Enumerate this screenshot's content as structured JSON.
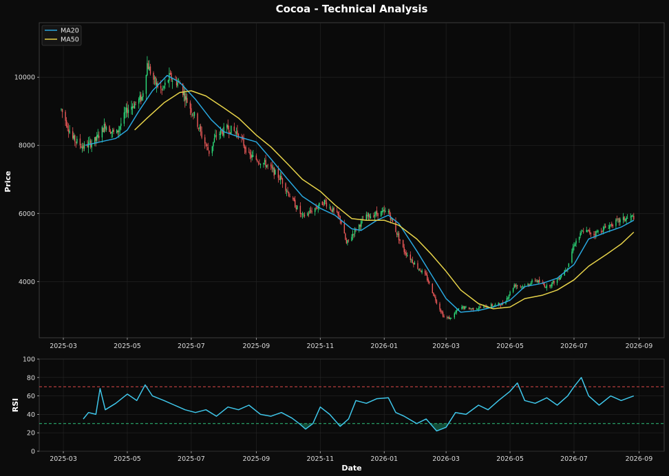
{
  "chart_data": [
    {
      "type": "candlestick",
      "title": "Cocoa - Technical Analysis",
      "ylabel": "Price",
      "xlabel": "",
      "ylim": [
        2350,
        11600
      ],
      "xlim": [
        "2025-02-06",
        "2026-09-25"
      ],
      "grid": true,
      "legend_position": "top-left",
      "x_ticks": [
        "2025-03",
        "2025-05",
        "2025-07",
        "2025-09",
        "2025-11",
        "2026-01",
        "2026-03",
        "2026-05",
        "2026-07",
        "2026-09"
      ],
      "y_ticks": [
        4000,
        6000,
        8000,
        10000
      ],
      "price_path": [
        [
          "2025-02-27",
          9050
        ],
        [
          "2025-03-10",
          8200
        ],
        [
          "2025-03-20",
          7950
        ],
        [
          "2025-04-01",
          8150
        ],
        [
          "2025-04-10",
          8600
        ],
        [
          "2025-04-20",
          8300
        ],
        [
          "2025-05-01",
          9050
        ],
        [
          "2025-05-15",
          9400
        ],
        [
          "2025-05-20",
          10400
        ],
        [
          "2025-05-27",
          9850
        ],
        [
          "2025-06-03",
          9600
        ],
        [
          "2025-06-10",
          10000
        ],
        [
          "2025-06-20",
          9800
        ],
        [
          "2025-06-27",
          9300
        ],
        [
          "2025-07-05",
          8800
        ],
        [
          "2025-07-12",
          8200
        ],
        [
          "2025-07-18",
          7800
        ],
        [
          "2025-07-25",
          8300
        ],
        [
          "2025-08-05",
          8500
        ],
        [
          "2025-08-15",
          8350
        ],
        [
          "2025-08-25",
          7700
        ],
        [
          "2025-09-10",
          7450
        ],
        [
          "2025-09-25",
          7000
        ],
        [
          "2025-10-05",
          6400
        ],
        [
          "2025-10-15",
          5900
        ],
        [
          "2025-10-25",
          6100
        ],
        [
          "2025-11-05",
          6350
        ],
        [
          "2025-11-20",
          5850
        ],
        [
          "2025-11-26",
          5100
        ],
        [
          "2025-12-05",
          5550
        ],
        [
          "2025-12-15",
          5900
        ],
        [
          "2025-12-25",
          6000
        ],
        [
          "2026-01-05",
          6050
        ],
        [
          "2026-01-12",
          5500
        ],
        [
          "2026-01-20",
          4900
        ],
        [
          "2026-02-01",
          4450
        ],
        [
          "2026-02-10",
          4150
        ],
        [
          "2026-02-20",
          3400
        ],
        [
          "2026-02-27",
          2950
        ],
        [
          "2026-03-05",
          2920
        ],
        [
          "2026-03-15",
          3250
        ],
        [
          "2026-03-25",
          3200
        ],
        [
          "2026-04-05",
          3250
        ],
        [
          "2026-04-15",
          3300
        ],
        [
          "2026-04-25",
          3350
        ],
        [
          "2026-05-05",
          3900
        ],
        [
          "2026-05-15",
          3850
        ],
        [
          "2026-05-25",
          4050
        ],
        [
          "2026-06-05",
          3850
        ],
        [
          "2026-06-15",
          4050
        ],
        [
          "2026-06-25",
          4450
        ],
        [
          "2026-07-01",
          5100
        ],
        [
          "2026-07-10",
          5500
        ],
        [
          "2026-07-20",
          5400
        ],
        [
          "2026-08-01",
          5600
        ],
        [
          "2026-08-10",
          5750
        ],
        [
          "2026-08-20",
          5850
        ],
        [
          "2026-08-27",
          5900
        ]
      ],
      "series": [
        {
          "name": "MA20",
          "color": "#29a8e0",
          "points": [
            [
              "2025-03-22",
              8000
            ],
            [
              "2025-04-05",
              8100
            ],
            [
              "2025-04-20",
              8200
            ],
            [
              "2025-05-01",
              8450
            ],
            [
              "2025-05-12",
              9000
            ],
            [
              "2025-05-25",
              9600
            ],
            [
              "2025-06-08",
              10050
            ],
            [
              "2025-06-20",
              9850
            ],
            [
              "2025-07-05",
              9350
            ],
            [
              "2025-07-20",
              8750
            ],
            [
              "2025-08-01",
              8400
            ],
            [
              "2025-08-15",
              8250
            ],
            [
              "2025-09-01",
              8100
            ],
            [
              "2025-09-15",
              7600
            ],
            [
              "2025-10-01",
              7000
            ],
            [
              "2025-10-15",
              6500
            ],
            [
              "2025-11-01",
              6150
            ],
            [
              "2025-11-15",
              5950
            ],
            [
              "2025-12-01",
              5550
            ],
            [
              "2025-12-10",
              5500
            ],
            [
              "2025-12-25",
              5800
            ],
            [
              "2026-01-05",
              5950
            ],
            [
              "2026-01-15",
              5700
            ],
            [
              "2026-02-01",
              4900
            ],
            [
              "2026-02-15",
              4200
            ],
            [
              "2026-03-01",
              3500
            ],
            [
              "2026-03-15",
              3100
            ],
            [
              "2026-04-01",
              3150
            ],
            [
              "2026-04-15",
              3250
            ],
            [
              "2026-05-01",
              3450
            ],
            [
              "2026-05-15",
              3850
            ],
            [
              "2026-06-01",
              3950
            ],
            [
              "2026-06-15",
              4100
            ],
            [
              "2026-07-01",
              4500
            ],
            [
              "2026-07-15",
              5250
            ],
            [
              "2026-08-01",
              5450
            ],
            [
              "2026-08-15",
              5600
            ],
            [
              "2026-08-27",
              5800
            ]
          ]
        },
        {
          "name": "MA50",
          "color": "#e8d44a",
          "points": [
            [
              "2025-05-08",
              8450
            ],
            [
              "2025-05-20",
              8800
            ],
            [
              "2025-06-05",
              9250
            ],
            [
              "2025-06-20",
              9550
            ],
            [
              "2025-07-01",
              9600
            ],
            [
              "2025-07-15",
              9450
            ],
            [
              "2025-08-01",
              9100
            ],
            [
              "2025-08-15",
              8800
            ],
            [
              "2025-09-01",
              8300
            ],
            [
              "2025-09-15",
              7950
            ],
            [
              "2025-10-01",
              7450
            ],
            [
              "2025-10-15",
              7000
            ],
            [
              "2025-11-01",
              6650
            ],
            [
              "2025-11-15",
              6250
            ],
            [
              "2025-12-01",
              5850
            ],
            [
              "2025-12-15",
              5800
            ],
            [
              "2026-01-01",
              5800
            ],
            [
              "2026-01-15",
              5650
            ],
            [
              "2026-02-01",
              5250
            ],
            [
              "2026-02-15",
              4800
            ],
            [
              "2026-03-01",
              4300
            ],
            [
              "2026-03-15",
              3750
            ],
            [
              "2026-04-01",
              3350
            ],
            [
              "2026-04-15",
              3200
            ],
            [
              "2026-05-01",
              3250
            ],
            [
              "2026-05-15",
              3500
            ],
            [
              "2026-06-01",
              3600
            ],
            [
              "2026-06-15",
              3750
            ],
            [
              "2026-07-01",
              4050
            ],
            [
              "2026-07-15",
              4450
            ],
            [
              "2026-08-01",
              4800
            ],
            [
              "2026-08-15",
              5100
            ],
            [
              "2026-08-27",
              5450
            ]
          ]
        }
      ],
      "colors": {
        "up": "#2ee37e",
        "down": "#f05a5a",
        "grid": "#262626"
      }
    },
    {
      "type": "line",
      "title": "",
      "xlabel": "Date",
      "ylabel": "RSI",
      "ylim": [
        0,
        100
      ],
      "y_ticks": [
        0,
        20,
        40,
        60,
        80,
        100
      ],
      "x_ticks": [
        "2025-03",
        "2025-05",
        "2025-07",
        "2025-09",
        "2025-11",
        "2026-01",
        "2026-03",
        "2026-05",
        "2026-07",
        "2026-09"
      ],
      "reference_lines": [
        {
          "value": 70,
          "color": "#e04848"
        },
        {
          "value": 30,
          "color": "#2ec47e"
        }
      ],
      "series": [
        {
          "name": "",
          "color": "#3fc8ec",
          "points": [
            [
              "2025-03-20",
              35
            ],
            [
              "2025-03-25",
              42
            ],
            [
              "2025-04-01",
              40
            ],
            [
              "2025-04-05",
              68
            ],
            [
              "2025-04-10",
              45
            ],
            [
              "2025-04-20",
              52
            ],
            [
              "2025-05-01",
              62
            ],
            [
              "2025-05-10",
              55
            ],
            [
              "2025-05-18",
              72
            ],
            [
              "2025-05-25",
              60
            ],
            [
              "2025-06-05",
              55
            ],
            [
              "2025-06-15",
              50
            ],
            [
              "2025-06-25",
              45
            ],
            [
              "2025-07-05",
              42
            ],
            [
              "2025-07-15",
              45
            ],
            [
              "2025-07-25",
              38
            ],
            [
              "2025-08-05",
              48
            ],
            [
              "2025-08-15",
              45
            ],
            [
              "2025-08-25",
              50
            ],
            [
              "2025-09-05",
              40
            ],
            [
              "2025-09-15",
              38
            ],
            [
              "2025-09-25",
              42
            ],
            [
              "2025-10-05",
              36
            ],
            [
              "2025-10-12",
              30
            ],
            [
              "2025-10-18",
              24
            ],
            [
              "2025-10-25",
              30
            ],
            [
              "2025-11-01",
              48
            ],
            [
              "2025-11-10",
              40
            ],
            [
              "2025-11-20",
              27
            ],
            [
              "2025-11-28",
              35
            ],
            [
              "2025-12-05",
              55
            ],
            [
              "2025-12-15",
              52
            ],
            [
              "2025-12-25",
              57
            ],
            [
              "2026-01-05",
              58
            ],
            [
              "2026-01-12",
              42
            ],
            [
              "2026-01-20",
              38
            ],
            [
              "2026-02-01",
              30
            ],
            [
              "2026-02-10",
              35
            ],
            [
              "2026-02-20",
              22
            ],
            [
              "2026-03-01",
              26
            ],
            [
              "2026-03-10",
              42
            ],
            [
              "2026-03-20",
              40
            ],
            [
              "2026-04-01",
              50
            ],
            [
              "2026-04-10",
              45
            ],
            [
              "2026-04-20",
              55
            ],
            [
              "2026-05-01",
              65
            ],
            [
              "2026-05-08",
              74
            ],
            [
              "2026-05-15",
              55
            ],
            [
              "2026-05-25",
              52
            ],
            [
              "2026-06-05",
              58
            ],
            [
              "2026-06-15",
              50
            ],
            [
              "2026-06-25",
              60
            ],
            [
              "2026-07-01",
              70
            ],
            [
              "2026-07-08",
              80
            ],
            [
              "2026-07-15",
              60
            ],
            [
              "2026-07-25",
              50
            ],
            [
              "2026-08-05",
              60
            ],
            [
              "2026-08-15",
              55
            ],
            [
              "2026-08-27",
              60
            ]
          ]
        }
      ]
    }
  ]
}
